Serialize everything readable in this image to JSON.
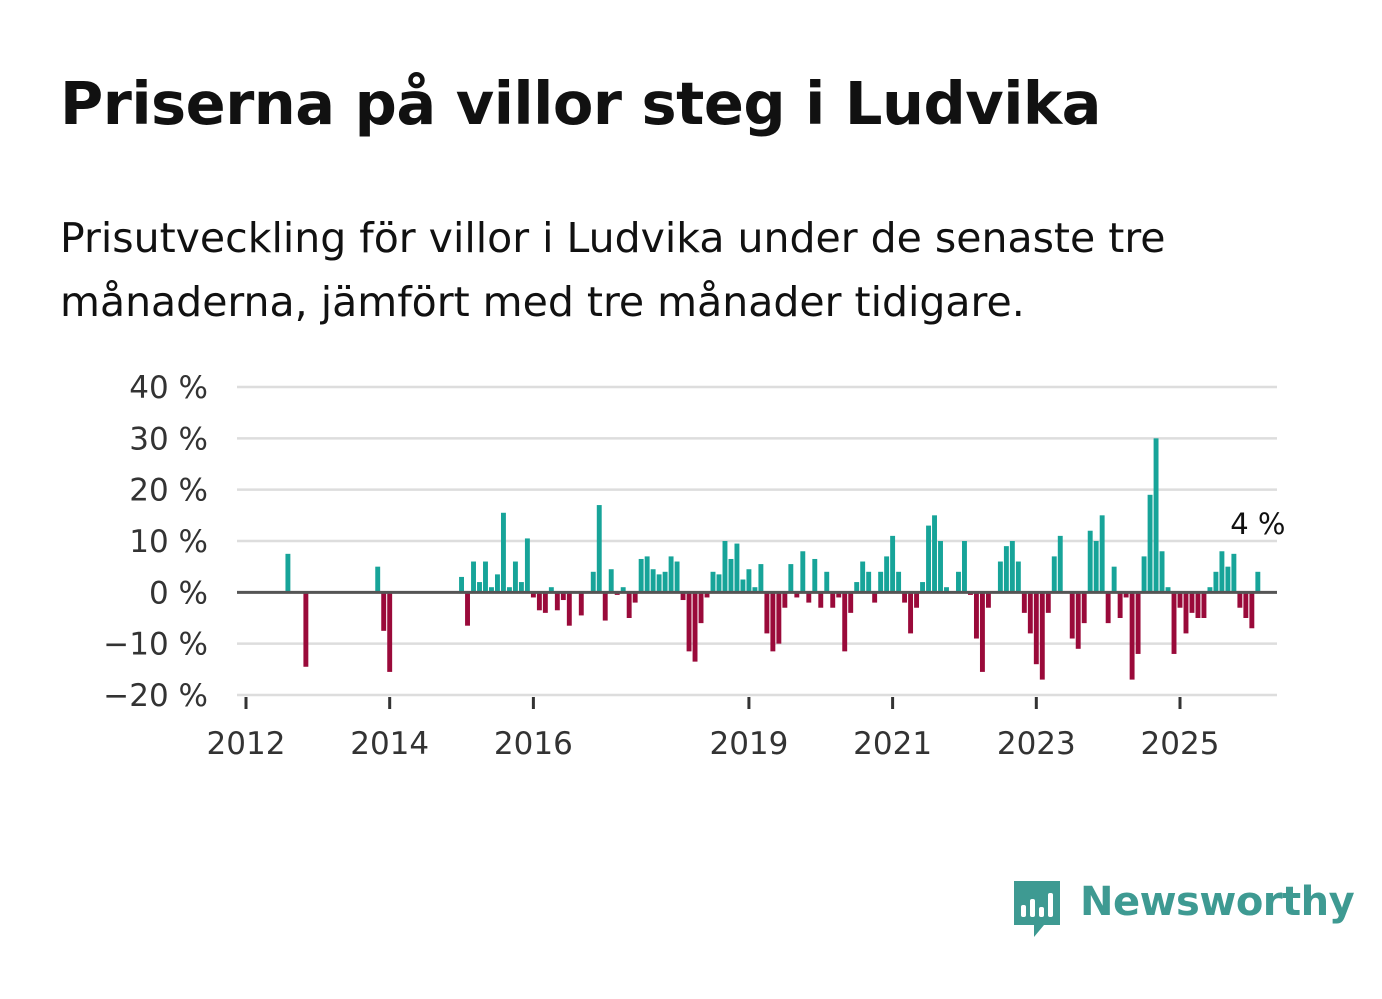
{
  "title": "Priserna på villor steg i Ludvika",
  "subtitle": "Prisutveckling för villor i Ludvika under de senaste tre månaderna, jämfört med tre månader tidigare.",
  "brand": {
    "name": "Newsworthy",
    "color": "#3e9a92",
    "icon": "newsworthy-logo-icon"
  },
  "colors": {
    "positive": "#17a499",
    "negative": "#9a0a3a",
    "grid": "#dddddd",
    "zero_line": "#555555",
    "text": "#111111"
  },
  "chart_data": {
    "type": "bar",
    "title": "Priserna på villor steg i Ludvika",
    "xlabel": "",
    "ylabel": "",
    "x_start": 2012.0,
    "x_step": 0.0833333,
    "x_domain": [
      2012.0,
      2026.5
    ],
    "ylim": [
      -20,
      40
    ],
    "y_ticks": [
      -20,
      -10,
      0,
      10,
      20,
      30,
      40
    ],
    "y_tick_labels": [
      "−20 %",
      "−10 %",
      "0 %",
      "10 %",
      "20 %",
      "30 %",
      "40 %"
    ],
    "x_ticks": [
      2012,
      2014,
      2016,
      2019,
      2021,
      2023,
      2025
    ],
    "x_tick_labels": [
      "2012",
      "2014",
      "2016",
      "2019",
      "2021",
      "2023",
      "2025"
    ],
    "grid": true,
    "annotation": {
      "text": "4 %",
      "value": 4
    },
    "values": [
      null,
      null,
      null,
      null,
      null,
      null,
      null,
      7.5,
      null,
      null,
      -14.5,
      null,
      null,
      null,
      null,
      null,
      null,
      null,
      null,
      null,
      null,
      null,
      5,
      -7.5,
      -15.5,
      null,
      null,
      null,
      null,
      null,
      null,
      null,
      null,
      null,
      null,
      null,
      3,
      -6.5,
      6,
      2,
      6,
      1,
      3.5,
      15.5,
      1,
      6,
      2,
      10.5,
      -1,
      -3.5,
      -4,
      1,
      -3.5,
      -1.5,
      -6.5,
      null,
      -4.5,
      null,
      4,
      17,
      -5.5,
      4.5,
      -0.5,
      1,
      -5,
      -2,
      6.5,
      7,
      4.5,
      3.5,
      4,
      7,
      6,
      -1.5,
      -11.5,
      -13.5,
      -6,
      -1,
      4,
      3.5,
      10,
      6.5,
      9.5,
      2.5,
      4.5,
      1,
      5.5,
      -8,
      -11.5,
      -10,
      -3,
      5.5,
      -1,
      8,
      -2,
      6.5,
      -3,
      4,
      -3,
      -1,
      -11.5,
      -4,
      2,
      6,
      4,
      -2,
      4,
      7,
      11,
      4,
      -2,
      -8,
      -3,
      2,
      13,
      15,
      10,
      1,
      null,
      4,
      10,
      -0.5,
      -9,
      -15.5,
      -3,
      null,
      6,
      9,
      10,
      6,
      -4,
      -8,
      -14,
      -17,
      -4,
      7,
      11,
      null,
      -9,
      -11,
      -6,
      12,
      10,
      15,
      -6,
      5,
      -5,
      -1,
      -17,
      -12,
      7,
      19,
      30,
      8,
      1,
      -12,
      -3,
      -8,
      -4,
      -5,
      -5,
      1,
      4,
      8,
      5,
      7.5,
      -3,
      -5,
      -7,
      4
    ]
  }
}
